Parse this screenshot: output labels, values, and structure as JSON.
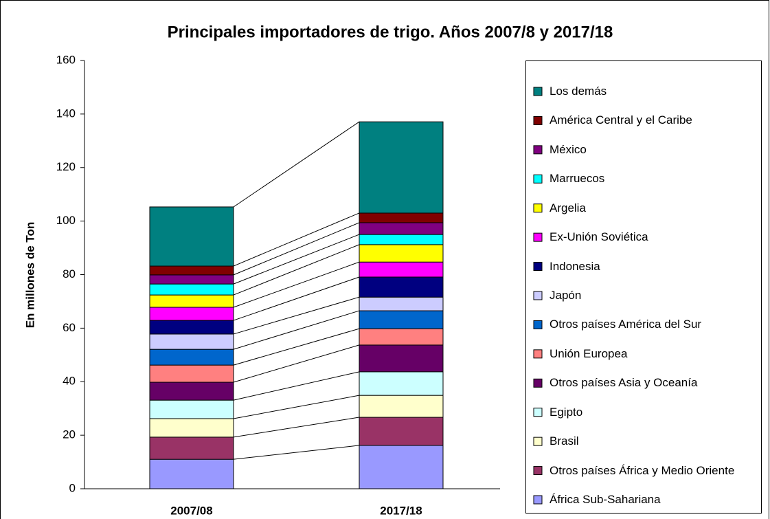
{
  "chart_data": {
    "type": "stacked_bar",
    "title": "Principales importadores de trigo. Años 2007/8 y 2017/18",
    "y_label": "En millones de Ton",
    "categories": [
      "2007/08",
      "2017/18"
    ],
    "ylim": [
      0,
      160
    ],
    "yticks": [
      0,
      20,
      40,
      60,
      80,
      100,
      120,
      140,
      160
    ],
    "grid": false,
    "legend": "right",
    "series_lines": true,
    "series": [
      {
        "name": "África Sub-Sahariana",
        "color": "#9999ff",
        "values": [
          11.0,
          16.2
        ]
      },
      {
        "name": "Otros países África y Medio Oriente",
        "color": "#993366",
        "values": [
          8.3,
          10.5
        ]
      },
      {
        "name": "Brasil",
        "color": "#ffffcc",
        "values": [
          6.9,
          8.2
        ]
      },
      {
        "name": "Egipto",
        "color": "#ccffff",
        "values": [
          6.9,
          8.8
        ]
      },
      {
        "name": "Otros países Asia y Oceanía",
        "color": "#660066",
        "values": [
          6.7,
          10.0
        ]
      },
      {
        "name": "Unión Europea",
        "color": "#ff8080",
        "values": [
          6.4,
          6.1
        ]
      },
      {
        "name": "Otros países América del Sur",
        "color": "#0066cc",
        "values": [
          5.9,
          6.7
        ]
      },
      {
        "name": "Japón",
        "color": "#ccccff",
        "values": [
          5.7,
          5.1
        ]
      },
      {
        "name": "Indonesia",
        "color": "#000080",
        "values": [
          5.1,
          7.5
        ]
      },
      {
        "name": "Ex-Unión Soviética",
        "color": "#ff00ff",
        "values": [
          4.9,
          5.6
        ]
      },
      {
        "name": "Argelia",
        "color": "#ffff00",
        "values": [
          4.6,
          6.5
        ]
      },
      {
        "name": "Marruecos",
        "color": "#00ffff",
        "values": [
          4.1,
          3.8
        ]
      },
      {
        "name": "México",
        "color": "#800080",
        "values": [
          3.4,
          4.4
        ]
      },
      {
        "name": "América Central y el Caribe",
        "color": "#800000",
        "values": [
          3.3,
          3.6
        ]
      },
      {
        "name": "Los demás",
        "color": "#008080",
        "values": [
          22.1,
          34.1
        ]
      }
    ]
  }
}
